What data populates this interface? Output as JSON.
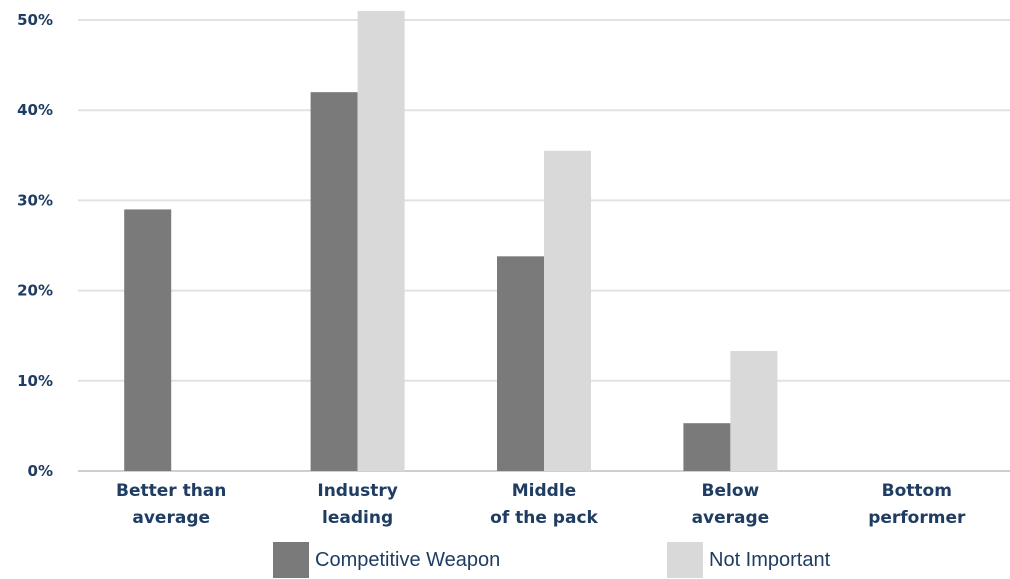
{
  "chart_data": {
    "type": "bar",
    "categories": [
      [
        "Better than",
        "average"
      ],
      [
        "Industry",
        "leading"
      ],
      [
        "Middle",
        "of the pack"
      ],
      [
        "Below",
        "average"
      ],
      [
        "Bottom",
        "performer"
      ]
    ],
    "series": [
      {
        "name": "Competitive Weapon",
        "color": "#7a7a7a",
        "values": [
          29,
          42,
          23.8,
          5.3,
          0
        ]
      },
      {
        "name": "Not Important",
        "color": "#d9d9d9",
        "values": [
          0,
          51,
          35.5,
          13.3,
          0
        ]
      }
    ],
    "yticks": [
      "0%",
      "10%",
      "20%",
      "30%",
      "40%",
      "50%"
    ],
    "ylim": [
      0,
      50
    ],
    "grid": true,
    "legend_position": "bottom"
  }
}
